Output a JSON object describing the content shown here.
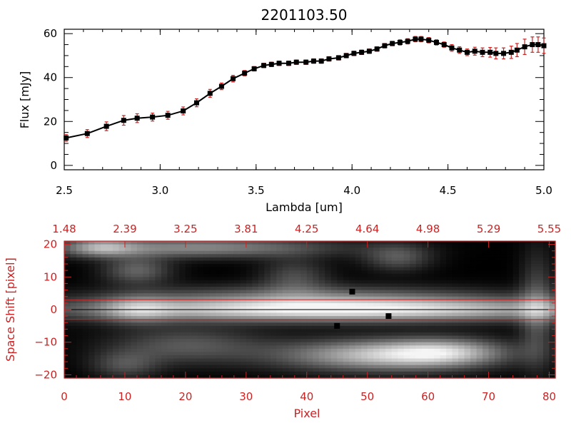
{
  "chart_data": [
    {
      "type": "line",
      "title": "2201103.50",
      "xlabel": "Lambda [um]",
      "ylabel": "Flux [mJy]",
      "xlim": [
        2.5,
        5.0
      ],
      "ylim": [
        -2,
        62
      ],
      "x_ticks": [
        {
          "value": 2.5,
          "label": "2.5"
        },
        {
          "value": 3.0,
          "label": "3.0"
        },
        {
          "value": 3.5,
          "label": "3.5"
        },
        {
          "value": 4.0,
          "label": "4.0"
        },
        {
          "value": 4.5,
          "label": "4.5"
        },
        {
          "value": 5.0,
          "label": "5.0"
        }
      ],
      "y_ticks": [
        {
          "value": 0,
          "label": "0"
        },
        {
          "value": 20,
          "label": "20"
        },
        {
          "value": 40,
          "label": "40"
        },
        {
          "value": 60,
          "label": "60"
        }
      ],
      "grid": false,
      "colors": {
        "line": "#000000",
        "marker": "#000000",
        "error_bar": "#cc2222"
      },
      "series": [
        {
          "x": [
            2.51,
            2.62,
            2.72,
            2.81,
            2.88,
            2.96,
            3.04,
            3.12,
            3.19,
            3.26,
            3.32,
            3.38,
            3.44,
            3.49,
            3.54,
            3.58,
            3.62,
            3.67,
            3.71,
            3.76,
            3.8,
            3.84,
            3.88,
            3.93,
            3.97,
            4.01,
            4.05,
            4.09,
            4.13,
            4.17,
            4.21,
            4.25,
            4.29,
            4.33,
            4.36,
            4.4,
            4.44,
            4.48,
            4.52,
            4.56,
            4.6,
            4.64,
            4.68,
            4.72,
            4.75,
            4.79,
            4.83,
            4.86,
            4.9,
            4.94,
            4.97,
            5.0
          ],
          "y": [
            12.5,
            14.5,
            17.8,
            20.5,
            21.5,
            22.0,
            22.8,
            24.8,
            28.5,
            32.8,
            36.0,
            39.5,
            42.0,
            44.0,
            45.5,
            46.0,
            46.5,
            46.5,
            47.0,
            47.0,
            47.5,
            47.5,
            48.5,
            49.0,
            50.0,
            51.0,
            51.5,
            52.0,
            53.0,
            54.5,
            55.5,
            56.0,
            56.5,
            57.5,
            57.5,
            57.0,
            56.0,
            55.0,
            53.5,
            52.5,
            51.5,
            52.0,
            51.5,
            51.5,
            51.0,
            51.0,
            51.5,
            52.5,
            54.0,
            55.0,
            55.0,
            54.5
          ],
          "error": [
            1.5,
            1.8,
            2.0,
            2.2,
            2.0,
            1.8,
            1.8,
            1.8,
            1.8,
            1.8,
            1.5,
            1.5,
            1.2,
            1.0,
            1.0,
            1.0,
            1.0,
            1.0,
            1.0,
            1.0,
            1.0,
            1.0,
            1.0,
            1.0,
            1.0,
            1.0,
            1.0,
            1.0,
            1.0,
            1.0,
            1.0,
            1.2,
            1.2,
            1.2,
            1.2,
            1.2,
            1.2,
            1.2,
            1.5,
            1.5,
            1.5,
            1.8,
            2.0,
            2.2,
            2.5,
            2.5,
            2.8,
            3.0,
            3.5,
            3.5,
            3.5,
            3.5
          ]
        }
      ]
    },
    {
      "type": "heatmap",
      "xlabel": "Pixel",
      "ylabel": "Space Shift [pixel]",
      "xlim": [
        0,
        81
      ],
      "ylim": [
        -21,
        21
      ],
      "x_ticks": [
        {
          "value": 0,
          "label": "0"
        },
        {
          "value": 10,
          "label": "10"
        },
        {
          "value": 20,
          "label": "20"
        },
        {
          "value": 30,
          "label": "30"
        },
        {
          "value": 40,
          "label": "40"
        },
        {
          "value": 50,
          "label": "50"
        },
        {
          "value": 60,
          "label": "60"
        },
        {
          "value": 70,
          "label": "70"
        },
        {
          "value": 80,
          "label": "80"
        }
      ],
      "y_ticks": [
        {
          "value": -20,
          "label": "−20"
        },
        {
          "value": -10,
          "label": "−10"
        },
        {
          "value": 0,
          "label": "0"
        },
        {
          "value": 10,
          "label": "10"
        },
        {
          "value": 20,
          "label": "20"
        }
      ],
      "top_axis_labels": [
        {
          "pixel": 0,
          "label": "1.48"
        },
        {
          "pixel": 10,
          "label": "2.39"
        },
        {
          "pixel": 20,
          "label": "3.25"
        },
        {
          "pixel": 30,
          "label": "3.81"
        },
        {
          "pixel": 40,
          "label": "4.25"
        },
        {
          "pixel": 50,
          "label": "4.64"
        },
        {
          "pixel": 60,
          "label": "4.98"
        },
        {
          "pixel": 70,
          "label": "5.29"
        },
        {
          "pixel": 80,
          "label": "5.55"
        }
      ],
      "aperture_lines": [
        3,
        -3
      ],
      "trace_line": 0,
      "colors": {
        "axes": "#cc2222",
        "aperture": "#cc2222",
        "trace": "#000000"
      },
      "blobs": [
        {
          "x": 45,
          "y": 0,
          "sx": 30,
          "sy": 2.6,
          "v": 1.0
        },
        {
          "x": 12,
          "y": 0,
          "sx": 4,
          "sy": 3.0,
          "v": 0.35
        },
        {
          "x": 40,
          "y": 4.5,
          "sx": 22,
          "sy": 2.5,
          "v": 0.3
        },
        {
          "x": 22,
          "y": 19,
          "sx": 16,
          "sy": 2.2,
          "v": 0.55
        },
        {
          "x": 12,
          "y": 12,
          "sx": 4,
          "sy": 3,
          "v": 0.4
        },
        {
          "x": 38,
          "y": 10,
          "sx": 4,
          "sy": 4,
          "v": 0.3
        },
        {
          "x": 55,
          "y": 16,
          "sx": 4,
          "sy": 3,
          "v": 0.35
        },
        {
          "x": 52,
          "y": -14,
          "sx": 12,
          "sy": 3.5,
          "v": 0.75
        },
        {
          "x": 63,
          "y": -13,
          "sx": 7,
          "sy": 3,
          "v": 0.5
        },
        {
          "x": 20,
          "y": -11,
          "sx": 9,
          "sy": 4,
          "v": 0.35
        },
        {
          "x": 10,
          "y": -17,
          "sx": 4,
          "sy": 3,
          "v": 0.3
        },
        {
          "x": 78,
          "y": 0,
          "sx": 2,
          "sy": 12,
          "v": 0.35
        },
        {
          "x": 6,
          "y": 19,
          "sx": 4,
          "sy": 2,
          "v": 0.45
        }
      ],
      "dark_spots": [
        [
          47.5,
          5.5
        ],
        [
          53.5,
          -2
        ],
        [
          45,
          -5
        ]
      ]
    }
  ]
}
